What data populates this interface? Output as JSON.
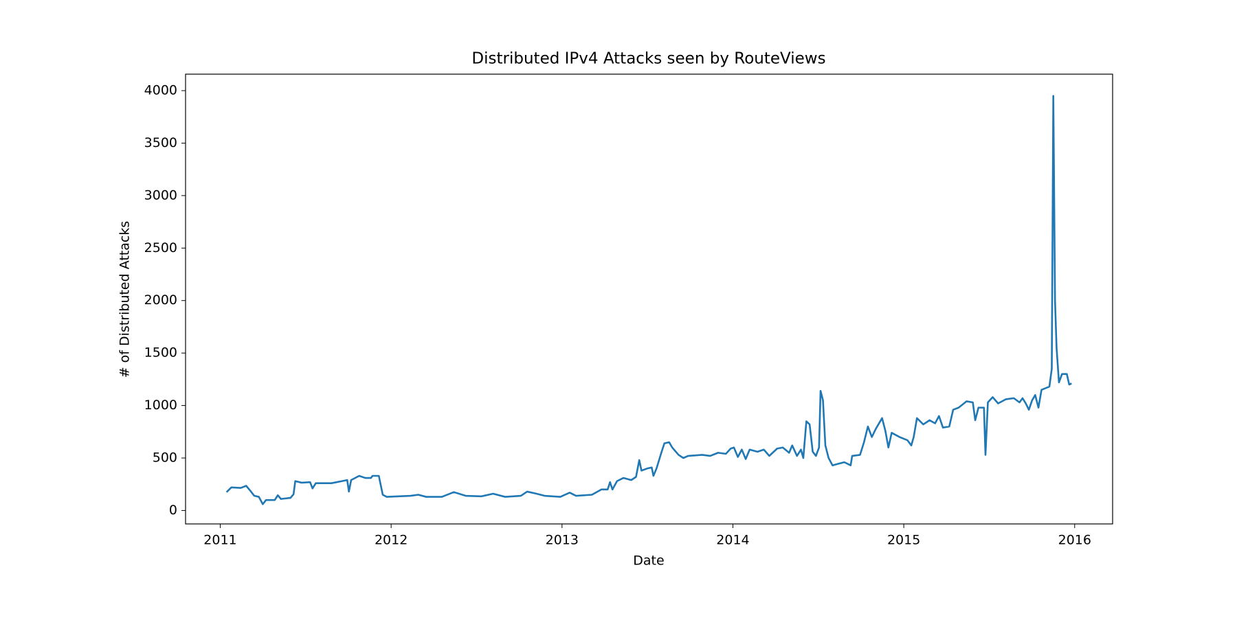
{
  "chart_data": {
    "type": "line",
    "title": "Distributed IPv4 Attacks seen by RouteViews",
    "xlabel": "Date",
    "ylabel": "# of Distributed Attacks",
    "xlim": [
      2010.797,
      2016.222
    ],
    "xticks": [
      2011,
      2012,
      2013,
      2014,
      2015,
      2016
    ],
    "ylim": [
      -128,
      4157
    ],
    "yticks": [
      0,
      500,
      1000,
      1500,
      2000,
      2500,
      3000,
      3500,
      4000
    ],
    "series": [
      {
        "color": "#1f77b4",
        "x": [
          2011.037,
          2011.065,
          2011.12,
          2011.152,
          2011.18,
          2011.199,
          2011.226,
          2011.249,
          2011.268,
          2011.319,
          2011.337,
          2011.355,
          2011.411,
          2011.429,
          2011.439,
          2011.476,
          2011.526,
          2011.54,
          2011.559,
          2011.651,
          2011.743,
          2011.753,
          2011.766,
          2011.813,
          2011.849,
          2011.882,
          2011.891,
          2011.928,
          2011.951,
          2011.974,
          2012.113,
          2012.159,
          2012.205,
          2012.297,
          2012.367,
          2012.436,
          2012.528,
          2012.597,
          2012.667,
          2012.759,
          2012.796,
          2012.851,
          2012.898,
          2012.99,
          2013.045,
          2013.082,
          2013.175,
          2013.23,
          2013.267,
          2013.281,
          2013.295,
          2013.322,
          2013.359,
          2013.405,
          2013.433,
          2013.452,
          2013.465,
          2013.498,
          2013.525,
          2013.535,
          2013.553,
          2013.581,
          2013.599,
          2013.627,
          2013.645,
          2013.682,
          2013.71,
          2013.738,
          2013.821,
          2013.867,
          2013.913,
          2013.959,
          2013.987,
          2014.006,
          2014.029,
          2014.052,
          2014.075,
          2014.098,
          2014.144,
          2014.181,
          2014.213,
          2014.259,
          2014.292,
          2014.329,
          2014.347,
          2014.375,
          2014.398,
          2014.412,
          2014.43,
          2014.449,
          2014.467,
          2014.486,
          2014.504,
          2014.513,
          2014.527,
          2014.541,
          2014.56,
          2014.583,
          2014.606,
          2014.652,
          2014.689,
          2014.698,
          2014.744,
          2014.767,
          2014.79,
          2014.813,
          2014.837,
          2014.873,
          2014.892,
          2014.91,
          2014.929,
          2014.975,
          2015.021,
          2015.044,
          2015.058,
          2015.077,
          2015.114,
          2015.151,
          2015.183,
          2015.206,
          2015.229,
          2015.266,
          2015.289,
          2015.321,
          2015.367,
          2015.404,
          2015.418,
          2015.437,
          2015.469,
          2015.478,
          2015.492,
          2015.52,
          2015.552,
          2015.598,
          2015.644,
          2015.677,
          2015.695,
          2015.714,
          2015.732,
          2015.751,
          2015.769,
          2015.788,
          2015.806,
          2015.852,
          2015.866,
          2015.875,
          2015.885,
          2015.894,
          2015.908,
          2015.926,
          2015.954,
          2015.968,
          2015.982
        ],
        "values": [
          175,
          220,
          215,
          235,
          180,
          140,
          130,
          60,
          100,
          100,
          145,
          110,
          120,
          155,
          280,
          265,
          270,
          210,
          260,
          260,
          290,
          180,
          290,
          330,
          310,
          310,
          330,
          330,
          150,
          130,
          140,
          150,
          130,
          130,
          175,
          140,
          135,
          160,
          130,
          140,
          180,
          160,
          140,
          130,
          170,
          140,
          150,
          200,
          200,
          270,
          200,
          280,
          310,
          290,
          320,
          480,
          380,
          400,
          410,
          330,
          400,
          550,
          640,
          650,
          600,
          530,
          500,
          520,
          530,
          520,
          550,
          540,
          590,
          600,
          510,
          580,
          490,
          580,
          560,
          580,
          520,
          590,
          600,
          550,
          620,
          520,
          580,
          500,
          850,
          820,
          560,
          520,
          600,
          1140,
          1050,
          620,
          500,
          430,
          440,
          460,
          430,
          520,
          530,
          650,
          800,
          700,
          780,
          880,
          760,
          600,
          740,
          700,
          670,
          620,
          700,
          880,
          820,
          860,
          830,
          900,
          790,
          800,
          960,
          980,
          1040,
          1030,
          860,
          980,
          980,
          530,
          1030,
          1080,
          1020,
          1060,
          1070,
          1030,
          1070,
          1020,
          960,
          1050,
          1100,
          980,
          1150,
          1180,
          1350,
          3950,
          2000,
          1550,
          1220,
          1300,
          1300,
          1200,
          1210
        ]
      }
    ]
  }
}
